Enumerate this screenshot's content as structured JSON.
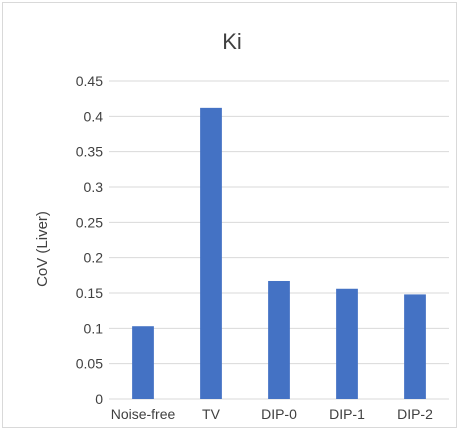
{
  "chart_data": {
    "type": "bar",
    "title": "Ki",
    "xlabel": "",
    "ylabel": "CoV (Liver)",
    "categories": [
      "Noise-free",
      "TV",
      "DIP-0",
      "DIP-1",
      "DIP-2"
    ],
    "values": [
      0.103,
      0.412,
      0.167,
      0.156,
      0.148
    ],
    "ylim": [
      0,
      0.45
    ],
    "yticks": [
      "0",
      "0.05",
      "0.1",
      "0.15",
      "0.2",
      "0.25",
      "0.3",
      "0.35",
      "0.4",
      "0.45"
    ],
    "grid": true,
    "legend": "none",
    "bar_color": "#4472c4"
  }
}
